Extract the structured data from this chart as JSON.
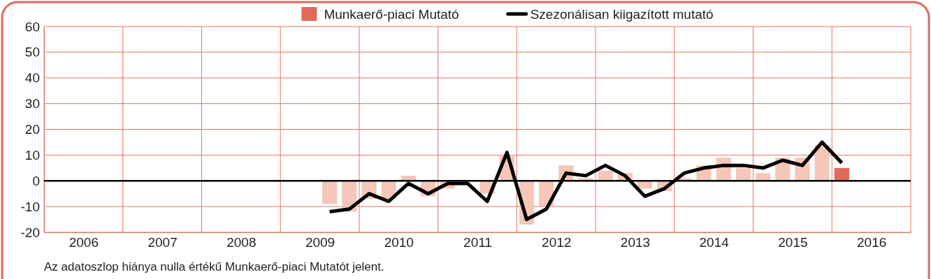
{
  "chart_data": {
    "type": "bar",
    "x": [
      2009.625,
      2009.875,
      2010.125,
      2010.375,
      2010.625,
      2010.875,
      2011.125,
      2011.375,
      2011.625,
      2011.875,
      2012.125,
      2012.375,
      2012.625,
      2012.875,
      2013.125,
      2013.375,
      2013.625,
      2013.875,
      2014.125,
      2014.375,
      2014.625,
      2014.875,
      2015.125,
      2015.375,
      2015.625,
      2015.875,
      2016.125
    ],
    "series": [
      {
        "name": "Munkaerő-piaci Mutató",
        "color": "#e2695a",
        "colors": [
          "#f4c7b8",
          "#f4c7b8",
          "#f4c7b8",
          "#f4c7b8",
          "#f4c7b8",
          "#f4c7b8",
          "#f4c7b8",
          "#f4c7b8",
          "#f4c7b8",
          "#f4c7b8",
          "#f4c7b8",
          "#f4c7b8",
          "#f4c7b8",
          "#f4c7b8",
          "#f4c7b8",
          "#f4c7b8",
          "#f4c7b8",
          "#f4c7b8",
          "#f4c7b8",
          "#f4c7b8",
          "#f4c7b8",
          "#f4c7b8",
          "#f4c7b8",
          "#f4c7b8",
          "#f4c7b8",
          "#f4c7b8",
          "#e2695a"
        ],
        "values": [
          -9,
          -12,
          -7,
          -7,
          2,
          -6,
          -3,
          0,
          -5,
          10,
          -17,
          -10,
          6,
          1,
          4,
          3,
          -3,
          -4,
          1,
          6,
          9,
          5,
          3,
          9,
          9,
          14,
          5
        ]
      },
      {
        "name": "Szezonálisan kiigazított mutató",
        "type": "line",
        "color": "#000000",
        "values": [
          -12,
          -11,
          -5,
          -8,
          -1,
          -5,
          -1,
          -1,
          -8,
          11,
          -15,
          -11,
          3,
          2,
          6,
          2,
          -6,
          -3,
          3,
          5,
          6,
          6,
          5,
          8,
          6,
          15,
          7
        ]
      }
    ],
    "xlim": [
      2006,
      2017
    ],
    "xticks": [
      {
        "value": 2006.5,
        "label": "2006"
      },
      {
        "value": 2007.5,
        "label": "2007"
      },
      {
        "value": 2008.5,
        "label": "2008"
      },
      {
        "value": 2009.5,
        "label": "2009"
      },
      {
        "value": 2010.5,
        "label": "2010"
      },
      {
        "value": 2011.5,
        "label": "2011"
      },
      {
        "value": 2012.5,
        "label": "2012"
      },
      {
        "value": 2013.5,
        "label": "2013"
      },
      {
        "value": 2014.5,
        "label": "2014"
      },
      {
        "value": 2015.5,
        "label": "2015"
      },
      {
        "value": 2016.5,
        "label": "2016"
      }
    ],
    "ylim": [
      -20,
      60
    ],
    "yticks": [
      -20,
      -10,
      0,
      10,
      20,
      30,
      40,
      50,
      60
    ],
    "grid": true,
    "legend": "top",
    "marker": "none",
    "line_style": "solid",
    "ref_lines": [
      {
        "axis": "y",
        "value": 0,
        "color": "#000000"
      }
    ],
    "annotations": [
      "Az adatoszlop hiánya nulla értékű Munkaerő-piaci Mutatót jelent."
    ]
  }
}
